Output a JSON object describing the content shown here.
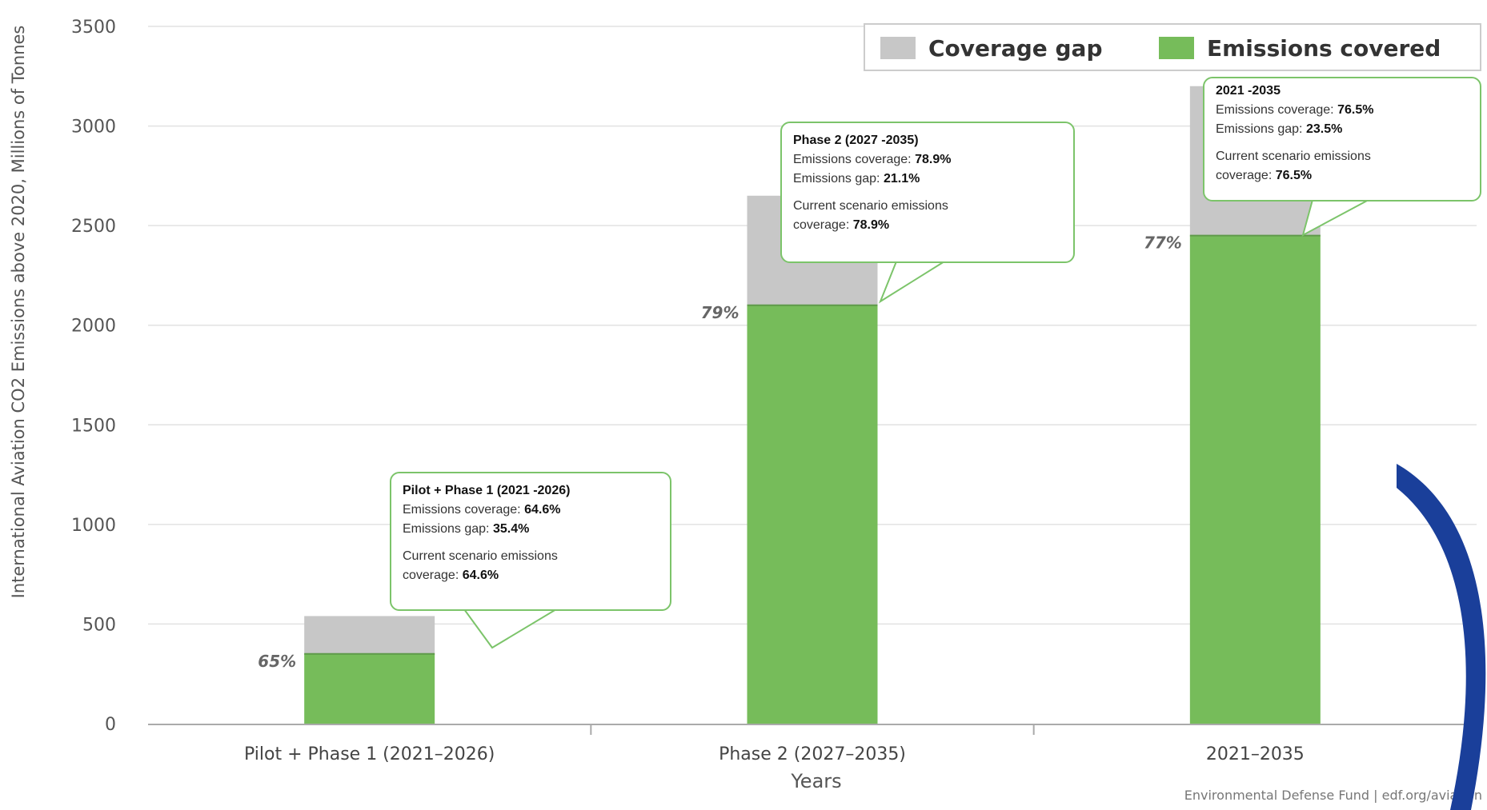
{
  "chart_data": {
    "type": "bar",
    "stacked": true,
    "categories": [
      "Pilot + Phase 1 (2021–2026)",
      "Phase 2 (2027–2035)",
      "2021–2035"
    ],
    "series": [
      {
        "name": "Emissions covered",
        "values": [
          350,
          2100,
          2450
        ],
        "color": "#76bc5a"
      },
      {
        "name": "Coverage gap",
        "values": [
          190,
          550,
          750
        ],
        "color": "#c7c7c7"
      }
    ],
    "bar_labels": [
      "65%",
      "79%",
      "77%"
    ],
    "xlabel": "Years",
    "ylabel": "International Aviation CO2 Emissions above 2020, Millions of Tonnes",
    "ylim": [
      0,
      3500
    ],
    "yticks": [
      0,
      500,
      1000,
      1500,
      2000,
      2500,
      3000,
      3500
    ],
    "grid": true,
    "legend_position": "top-right",
    "legend": [
      "Coverage gap",
      "Emissions covered"
    ],
    "credit": "Environmental Defense Fund | edf.org/aviation"
  },
  "tooltips": [
    {
      "title": "Pilot + Phase 1 (2021 -2026)",
      "coverage_label": "Emissions coverage:",
      "coverage_value": "64.6%",
      "gap_label": "Emissions gap:",
      "gap_value": "35.4%",
      "scenario_label1": "Current scenario emissions",
      "scenario_label2": "coverage:",
      "scenario_value": "64.6%"
    },
    {
      "title": "Phase 2 (2027 -2035)",
      "coverage_label": "Emissions coverage:",
      "coverage_value": "78.9%",
      "gap_label": "Emissions gap:",
      "gap_value": "21.1%",
      "scenario_label1": "Current scenario emissions",
      "scenario_label2": "coverage:",
      "scenario_value": "78.9%"
    },
    {
      "title": "2021 -2035",
      "coverage_label": "Emissions coverage:",
      "coverage_value": "76.5%",
      "gap_label": "Emissions gap:",
      "gap_value": "23.5%",
      "scenario_label1": "Current scenario emissions",
      "scenario_label2": "coverage:",
      "scenario_value": "76.5%"
    }
  ]
}
